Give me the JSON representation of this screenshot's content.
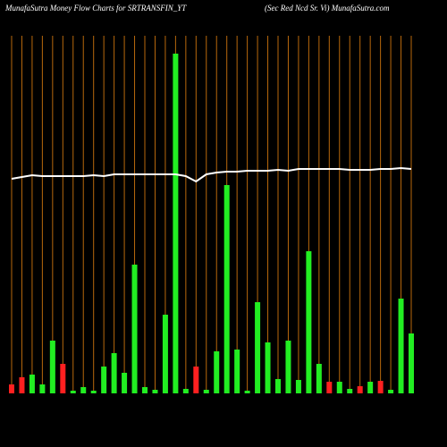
{
  "chart_data": {
    "type": "bar",
    "title": "MunafaSutra  Money Flow  Charts for SRTRANSFIN_YT",
    "subtitle": "(Sec Red Ncd Sr. Vi) MunafaSutra.com",
    "categories": [
      null,
      null,
      null,
      null,
      null,
      null,
      null,
      null,
      null,
      null,
      null,
      null,
      null,
      null,
      null,
      null,
      null,
      null,
      null,
      null,
      null,
      null,
      null,
      null,
      null,
      null,
      null,
      null,
      null,
      null,
      null,
      null,
      null,
      null,
      null,
      null,
      null,
      null,
      null,
      null
    ],
    "ylim": [
      0,
      380
    ],
    "series": [
      {
        "values": [
          10,
          18,
          21,
          10,
          59,
          33,
          3,
          7,
          3,
          30,
          45,
          23,
          144,
          7,
          4,
          88,
          380,
          5,
          30,
          4,
          47,
          233,
          49,
          3,
          102,
          57,
          16,
          59,
          15,
          159,
          33,
          13,
          13,
          5,
          8,
          13,
          14,
          4,
          106,
          67
        ],
        "colors": [
          "#ff2020",
          "#ff2020",
          "#22ee22",
          "#22ee22",
          "#22ee22",
          "#ff2020",
          "#22ee22",
          "#22ee22",
          "#22ee22",
          "#22ee22",
          "#22ee22",
          "#22ee22",
          "#22ee22",
          "#22ee22",
          "#22ee22",
          "#22ee22",
          "#22ee22",
          "#22ee22",
          "#ff2020",
          "#22ee22",
          "#22ee22",
          "#22ee22",
          "#22ee22",
          "#22ee22",
          "#22ee22",
          "#22ee22",
          "#22ee22",
          "#22ee22",
          "#22ee22",
          "#22ee22",
          "#22ee22",
          "#ff2020",
          "#22ee22",
          "#22ee22",
          "#ff2020",
          "#22ee22",
          "#ff2020",
          "#22ee22",
          "#22ee22",
          "#22ee22"
        ]
      },
      {
        "type": "line",
        "color": "#ffffff",
        "values": [
          240,
          242,
          244,
          243,
          243,
          243,
          243,
          243,
          244,
          243,
          245,
          245,
          245,
          245,
          245,
          245,
          245,
          243,
          237,
          245,
          247,
          248,
          248,
          249,
          249,
          249,
          250,
          249,
          251,
          251,
          251,
          251,
          251,
          250,
          250,
          250,
          251,
          251,
          252,
          251
        ]
      }
    ],
    "gridline_color": "#b8680c"
  }
}
